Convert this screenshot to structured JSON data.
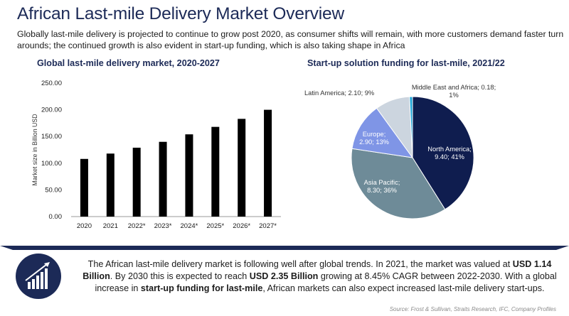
{
  "header": {
    "title": "African Last-mile Delivery Market Overview",
    "subtitle": "Globally last-mile delivery is projected to continue to grow post 2020, as consumer shifts will remain, with more customers demand faster turn arounds; the continued growth is also evident in start-up funding, which is also taking shape in Africa"
  },
  "chart_data": [
    {
      "type": "bar",
      "title": "Global last-mile delivery market, 2020-2027",
      "ylabel": "Market size in Billion USD",
      "xlabel": "",
      "categories": [
        "2020",
        "2021",
        "2022*",
        "2023*",
        "2024*",
        "2025*",
        "2026*",
        "2027*"
      ],
      "values": [
        108,
        118,
        129,
        140,
        154,
        168,
        183,
        200
      ],
      "ylim": [
        0,
        250
      ],
      "yticks": [
        "0.00",
        "50.00",
        "100.00",
        "150.00",
        "200.00",
        "250.00"
      ],
      "color": "#000000",
      "grid": false
    },
    {
      "type": "pie",
      "title": "Start-up solution funding for last-mile, 2021/22",
      "slices": [
        {
          "name": "North America",
          "value": 9.4,
          "percent": 41,
          "label_lines": [
            "North America;",
            "9.40; 41%"
          ],
          "color": "#0f1d4f",
          "text_color": "#ffffff"
        },
        {
          "name": "Asia Pacific",
          "value": 8.3,
          "percent": 36,
          "label_lines": [
            "Asia Pacific;",
            "8.30; 36%"
          ],
          "color": "#6e8b98",
          "text_color": "#ffffff"
        },
        {
          "name": "Europe",
          "value": 2.9,
          "percent": 13,
          "label_lines": [
            "Europe;",
            "2.90; 13%"
          ],
          "color": "#7f95e6",
          "text_color": "#ffffff"
        },
        {
          "name": "Latin America",
          "value": 2.1,
          "percent": 9,
          "label_lines": [
            "Latin America; 2.10; 9%"
          ],
          "color": "#ccd5df",
          "text_color": "#333333"
        },
        {
          "name": "Middle East and Africa",
          "value": 0.18,
          "percent": 1,
          "label_lines": [
            "Middle East and Africa; 0.18;",
            "1%"
          ],
          "color": "#1fa6d8",
          "text_color": "#333333"
        }
      ]
    }
  ],
  "summary": {
    "part1": "The African last-mile delivery market is following well after global trends. In 2021, the market was valued at ",
    "value1": "USD 1.14 Billion",
    "part2": ". By 2030 this is expected to reach ",
    "value2": "USD 2.35 Billion",
    "part3": " growing at 8.45% CAGR between 2022-2030. With a global increase in ",
    "highlight": "start-up funding for last-mile",
    "part4": ", African markets can also expect increased last-mile delivery start-ups."
  },
  "source": "Source: Frost & Sullivan, Straits Research, IFC, Company Profiles",
  "icon": "growth-chart-icon",
  "colors": {
    "brand": "#1c2a57",
    "bar": "#000000"
  }
}
